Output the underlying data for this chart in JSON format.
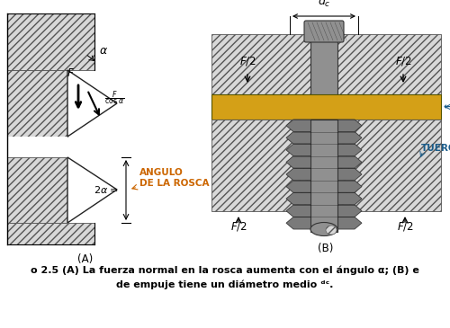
{
  "fig_width": 5.0,
  "fig_height": 3.65,
  "dpi": 100,
  "bg_color": "#ffffff",
  "caption_line1": "o 2.5 (A) La fuerza normal en la rosca aumenta con el ángulo α; (B) e",
  "caption_line2": "de empuje tiene un diámetro medio ᵈᶜ.",
  "hatch_color": "#555555",
  "gold_color": "#D4A017",
  "thread_gray": "#7a7a7a",
  "shank_gray": "#909090",
  "block_face": "#d8d8d8",
  "text_orange": "#CC6600",
  "label_blue": "#1a5c8a",
  "black": "#000000",
  "font_caption": 8.0
}
